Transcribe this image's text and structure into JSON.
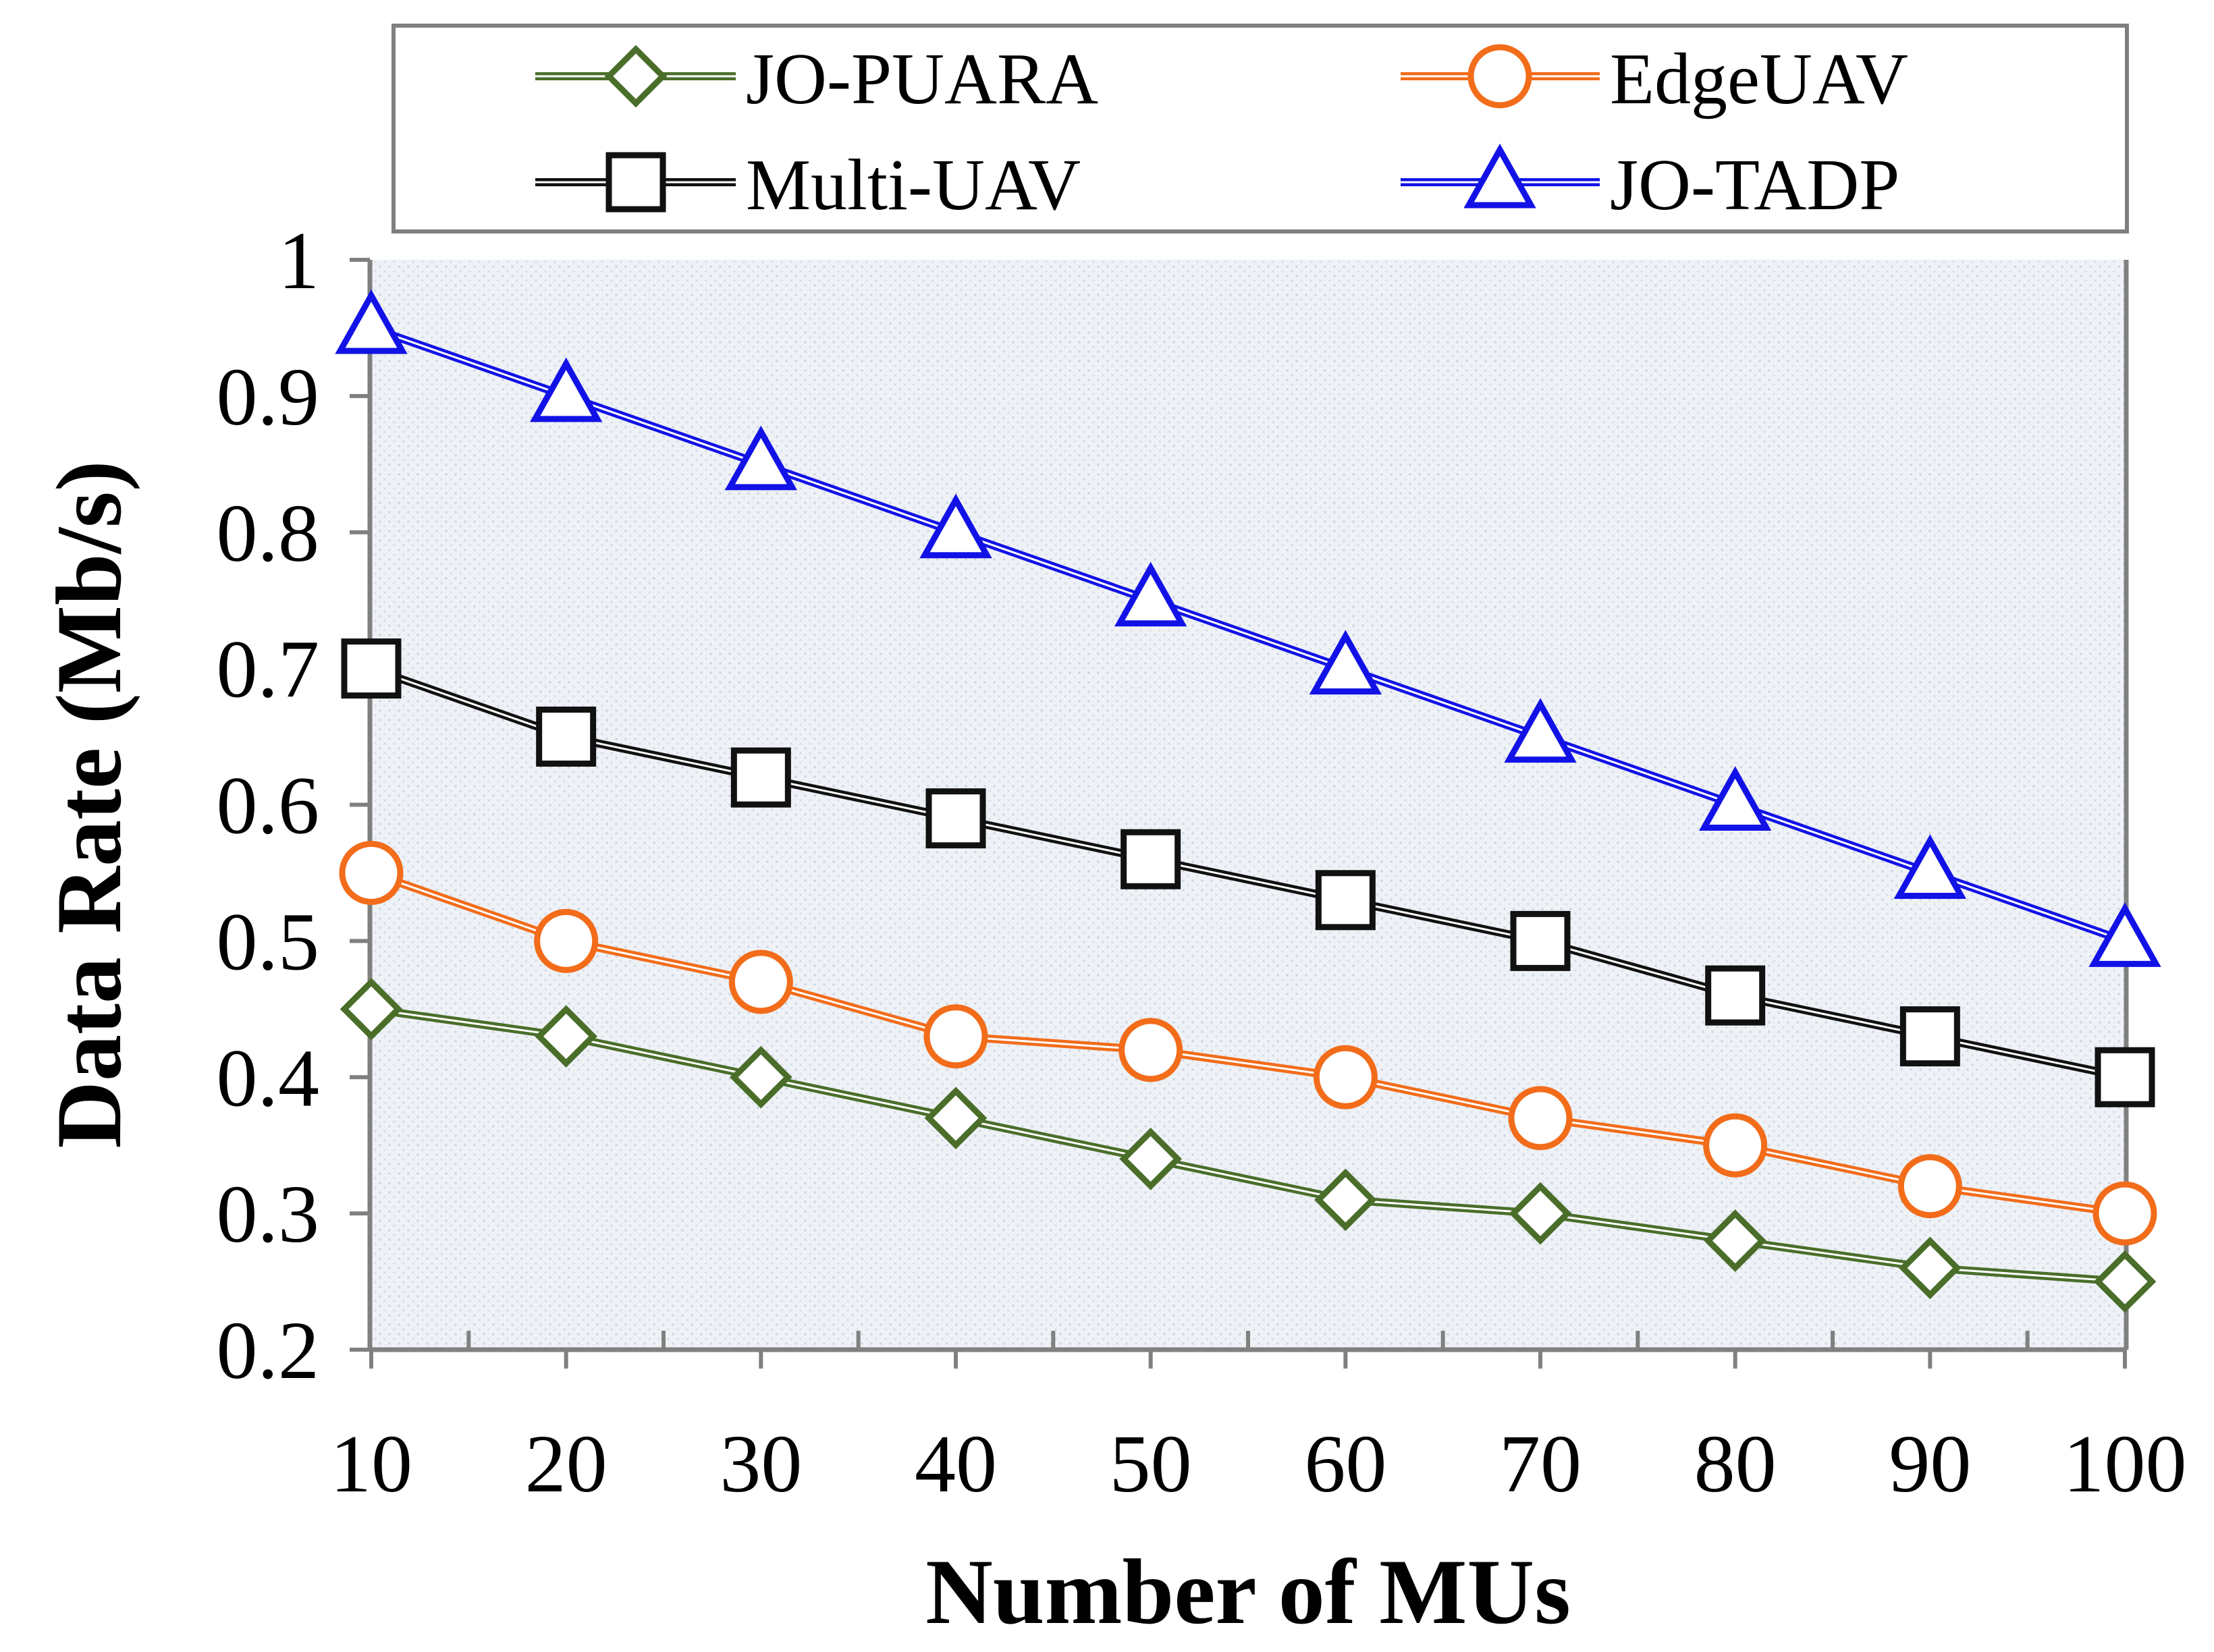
{
  "chart_data": {
    "type": "line",
    "title": "",
    "xlabel": "Number of MUs",
    "ylabel": "Data Rate (Mb/s)",
    "x": [
      10,
      20,
      30,
      40,
      50,
      60,
      70,
      80,
      90,
      100
    ],
    "x_tick_labels": [
      "10",
      "20",
      "30",
      "40",
      "50",
      "60",
      "70",
      "80",
      "90",
      "100"
    ],
    "ylim": [
      0.2,
      1.0
    ],
    "y_ticks": [
      0.2,
      0.3,
      0.4,
      0.5,
      0.6,
      0.7,
      0.8,
      0.9,
      1.0
    ],
    "y_tick_labels": [
      "0.2",
      "0.3",
      "0.4",
      "0.5",
      "0.6",
      "0.7",
      "0.8",
      "0.9",
      "1"
    ],
    "legend_position": "top",
    "grid": false,
    "series": [
      {
        "name": "JO-PUARA",
        "marker": "diamond",
        "color": "#4a6e2a",
        "values": [
          0.45,
          0.43,
          0.4,
          0.37,
          0.34,
          0.31,
          0.3,
          0.28,
          0.26,
          0.25
        ]
      },
      {
        "name": "EdgeUAV",
        "marker": "circle",
        "color": "#f26c1a",
        "values": [
          0.55,
          0.5,
          0.47,
          0.43,
          0.42,
          0.4,
          0.37,
          0.35,
          0.32,
          0.3
        ]
      },
      {
        "name": "Multi-UAV",
        "marker": "square",
        "color": "#111111",
        "values": [
          0.7,
          0.65,
          0.62,
          0.59,
          0.56,
          0.53,
          0.5,
          0.46,
          0.43,
          0.4
        ]
      },
      {
        "name": "JO-TADP",
        "marker": "triangle",
        "color": "#1212e6",
        "values": [
          0.95,
          0.9,
          0.85,
          0.8,
          0.75,
          0.7,
          0.65,
          0.6,
          0.55,
          0.5
        ]
      }
    ]
  }
}
